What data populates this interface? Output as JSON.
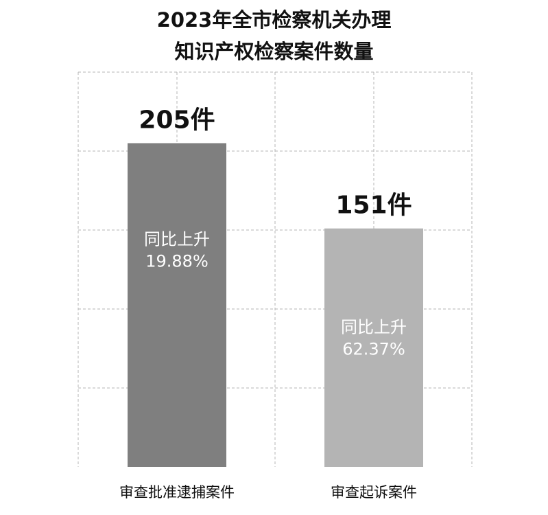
{
  "chart_data": {
    "type": "bar",
    "title_lines": [
      "2023年全市检察机关办理",
      "知识产权检察案件数量"
    ],
    "categories": [
      "审查批准逮捕案件",
      "审查起诉案件"
    ],
    "values": [
      205,
      151
    ],
    "value_labels": [
      "205件",
      "151件"
    ],
    "inner_labels": [
      [
        "同比上升",
        "19.88%"
      ],
      [
        "同比上升",
        "62.37%"
      ]
    ],
    "bar_colors": [
      "#7f7f7f",
      "#b4b4b4"
    ],
    "grid": true,
    "xlabel": "",
    "ylabel": ""
  }
}
